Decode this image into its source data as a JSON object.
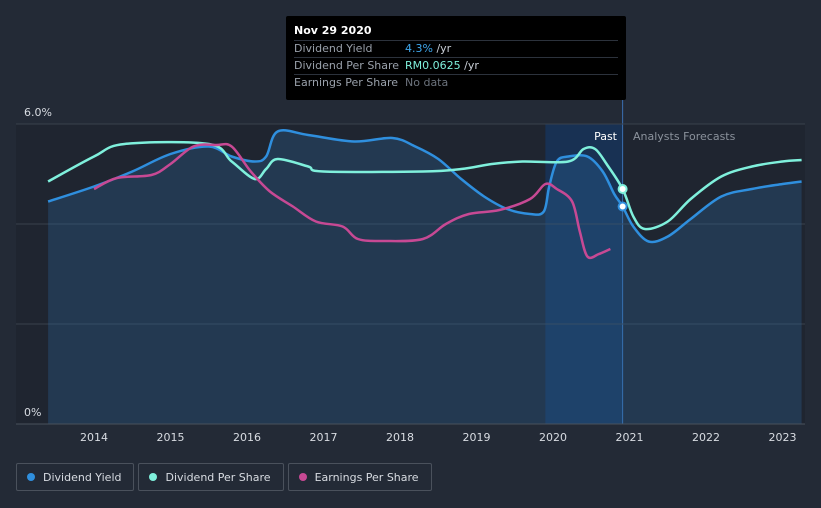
{
  "chart_data": {
    "type": "line",
    "title": "",
    "xlabel": "",
    "ylabel": "",
    "ylim": [
      0,
      6
    ],
    "y_tick_labels": [
      "6.0%",
      "0%"
    ],
    "x_tick_labels": [
      "2014",
      "2015",
      "2016",
      "2017",
      "2018",
      "2019",
      "2020",
      "2021",
      "2022",
      "2023"
    ],
    "past_label": "Past",
    "forecast_label": "Analysts Forecasts",
    "series": [
      {
        "name": "Dividend Yield",
        "color": "#2f8fde",
        "area": true,
        "points": [
          [
            2013.4,
            4.45
          ],
          [
            2014.0,
            4.75
          ],
          [
            2014.5,
            5.05
          ],
          [
            2015.0,
            5.4
          ],
          [
            2015.5,
            5.55
          ],
          [
            2015.8,
            5.35
          ],
          [
            2016.1,
            5.25
          ],
          [
            2016.25,
            5.35
          ],
          [
            2016.4,
            5.85
          ],
          [
            2016.8,
            5.78
          ],
          [
            2017.4,
            5.65
          ],
          [
            2017.9,
            5.72
          ],
          [
            2018.2,
            5.55
          ],
          [
            2018.5,
            5.3
          ],
          [
            2018.8,
            4.9
          ],
          [
            2019.1,
            4.55
          ],
          [
            2019.4,
            4.3
          ],
          [
            2019.7,
            4.2
          ],
          [
            2019.88,
            4.25
          ],
          [
            2019.95,
            4.75
          ],
          [
            2020.05,
            5.25
          ],
          [
            2020.2,
            5.35
          ],
          [
            2020.45,
            5.35
          ],
          [
            2020.65,
            5.05
          ],
          [
            2020.8,
            4.6
          ],
          [
            2020.91,
            4.35
          ],
          [
            2021.05,
            3.95
          ],
          [
            2021.25,
            3.65
          ],
          [
            2021.5,
            3.75
          ],
          [
            2021.8,
            4.1
          ],
          [
            2022.2,
            4.55
          ],
          [
            2022.6,
            4.7
          ],
          [
            2023.0,
            4.8
          ],
          [
            2023.25,
            4.85
          ]
        ]
      },
      {
        "name": "Dividend Per Share",
        "color": "#7ff0dc",
        "area": false,
        "points": [
          [
            2013.4,
            4.85
          ],
          [
            2014.0,
            5.35
          ],
          [
            2014.4,
            5.6
          ],
          [
            2015.5,
            5.6
          ],
          [
            2015.8,
            5.25
          ],
          [
            2016.1,
            4.9
          ],
          [
            2016.25,
            5.1
          ],
          [
            2016.4,
            5.3
          ],
          [
            2016.8,
            5.15
          ],
          [
            2017.0,
            5.05
          ],
          [
            2018.3,
            5.05
          ],
          [
            2018.8,
            5.1
          ],
          [
            2019.2,
            5.2
          ],
          [
            2019.6,
            5.25
          ],
          [
            2020.2,
            5.25
          ],
          [
            2020.4,
            5.5
          ],
          [
            2020.55,
            5.5
          ],
          [
            2020.7,
            5.2
          ],
          [
            2020.91,
            4.7
          ],
          [
            2021.05,
            4.15
          ],
          [
            2021.2,
            3.9
          ],
          [
            2021.5,
            4.05
          ],
          [
            2021.8,
            4.5
          ],
          [
            2022.2,
            4.95
          ],
          [
            2022.6,
            5.15
          ],
          [
            2023.0,
            5.25
          ],
          [
            2023.25,
            5.28
          ]
        ]
      },
      {
        "name": "Earnings Per Share",
        "color": "#c74994",
        "area": false,
        "points": [
          [
            2014.0,
            4.7
          ],
          [
            2014.3,
            4.92
          ],
          [
            2014.75,
            4.98
          ],
          [
            2015.0,
            5.2
          ],
          [
            2015.3,
            5.55
          ],
          [
            2015.6,
            5.58
          ],
          [
            2015.8,
            5.55
          ],
          [
            2016.05,
            5.05
          ],
          [
            2016.3,
            4.65
          ],
          [
            2016.6,
            4.35
          ],
          [
            2016.9,
            4.05
          ],
          [
            2017.25,
            3.95
          ],
          [
            2017.45,
            3.7
          ],
          [
            2017.8,
            3.66
          ],
          [
            2018.3,
            3.7
          ],
          [
            2018.6,
            4.0
          ],
          [
            2018.9,
            4.2
          ],
          [
            2019.3,
            4.28
          ],
          [
            2019.7,
            4.5
          ],
          [
            2019.9,
            4.8
          ],
          [
            2020.05,
            4.7
          ],
          [
            2020.25,
            4.45
          ],
          [
            2020.35,
            3.85
          ],
          [
            2020.45,
            3.35
          ],
          [
            2020.6,
            3.4
          ],
          [
            2020.75,
            3.5
          ]
        ]
      }
    ]
  },
  "tooltip": {
    "date": "Nov 29 2020",
    "rows": [
      {
        "label": "Dividend Yield",
        "value": "4.3%",
        "unit": " /yr"
      },
      {
        "label": "Dividend Per Share",
        "value": "RM0.0625",
        "unit": " /yr"
      },
      {
        "label": "Earnings Per Share",
        "value": "No data",
        "unit": ""
      }
    ]
  },
  "legend": [
    {
      "label": "Dividend Yield",
      "color": "#2f8fde"
    },
    {
      "label": "Dividend Per Share",
      "color": "#7ff0dc"
    },
    {
      "label": "Earnings Per Share",
      "color": "#c74994"
    }
  ]
}
